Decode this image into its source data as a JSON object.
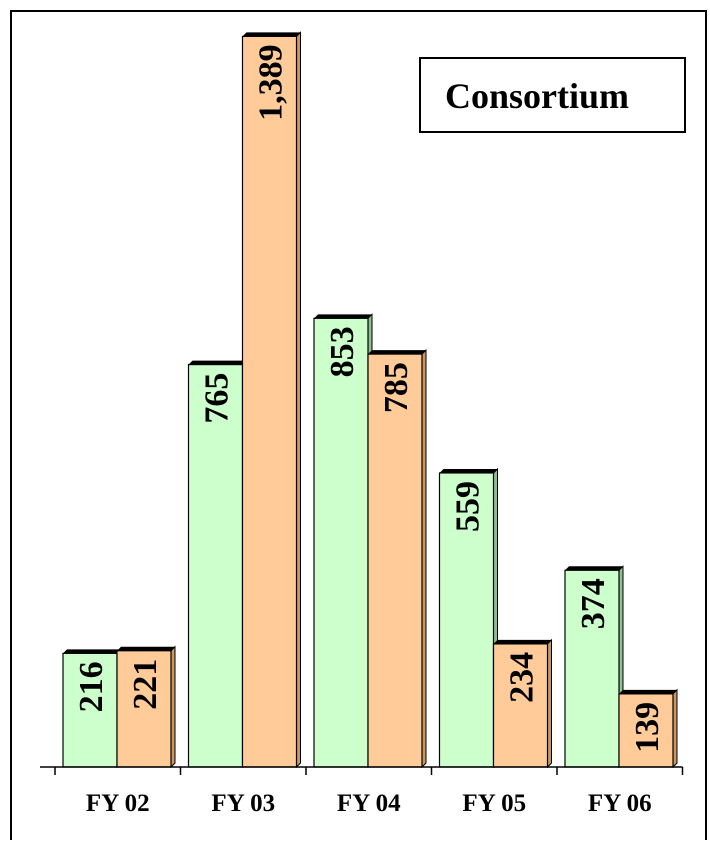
{
  "chart_data": {
    "type": "bar",
    "title": "Consortium",
    "xlabel": "",
    "ylabel": "",
    "categories": [
      "FY 02",
      "FY 03",
      "FY 04",
      "FY 05",
      "FY 06"
    ],
    "series": [
      {
        "values": [
          216,
          765,
          853,
          559,
          374
        ],
        "value_labels": [
          "216",
          "765",
          "853",
          "559",
          "374"
        ]
      },
      {
        "values": [
          221,
          1389,
          785,
          234,
          139
        ],
        "value_labels": [
          "221",
          "1,389",
          "785",
          "234",
          "139"
        ]
      }
    ],
    "ylim": [
      0,
      1400
    ],
    "grid": false,
    "colors": {
      "series_1_fill": "#CCFFCC",
      "series_1_side": "#8FBF8F",
      "series_2_fill": "#FFCC99",
      "series_2_side": "#C89860",
      "outline": "#000000"
    }
  }
}
